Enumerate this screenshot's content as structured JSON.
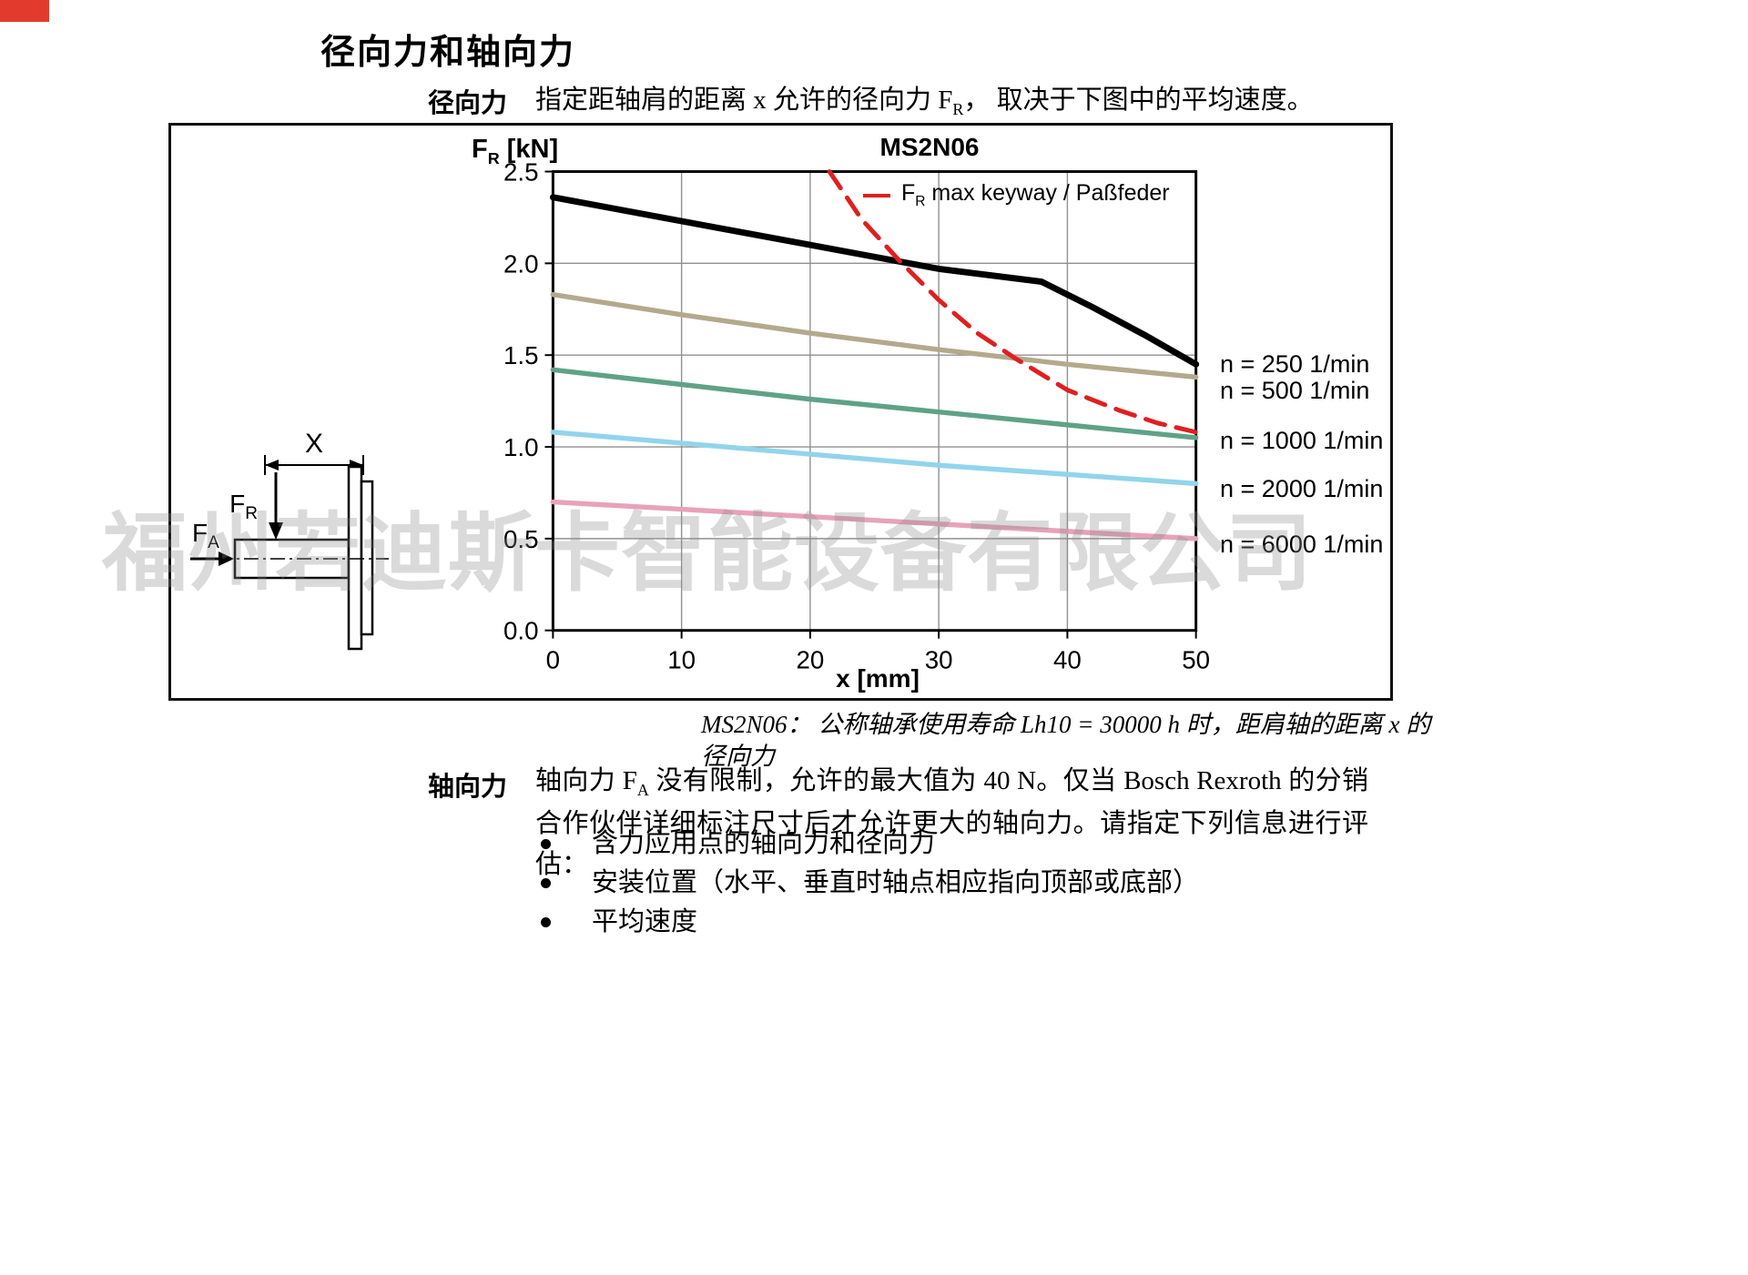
{
  "page": {
    "title": "径向力和轴向力",
    "watermark": "福州若迪斯卡智能设备有限公司"
  },
  "radial_section": {
    "label": "径向力",
    "text_before": "指定距轴肩的距离 x 允许的径向力 F",
    "text_sub": "R",
    "text_after": "， 取决于下图中的平均速度。"
  },
  "figure": {
    "y_axis": {
      "prefix": "F",
      "sub": "R",
      "suffix": " [kN]"
    },
    "legend": {
      "prefix": "F",
      "sub": "R",
      "suffix": " max keyway / Paßfeder"
    },
    "diagram": {
      "dim_label": "X",
      "fr_prefix": "F",
      "fr_sub": "R",
      "fa_prefix": "F",
      "fa_sub": "A"
    }
  },
  "chart_data": {
    "type": "line",
    "title": "MS2N06",
    "xlabel": "x [mm]",
    "ylabel": "FR [kN]",
    "xlim": [
      0,
      50
    ],
    "ylim": [
      0.0,
      2.5
    ],
    "x_ticks": [
      0,
      10,
      20,
      30,
      40,
      50
    ],
    "y_ticks": [
      0.0,
      0.5,
      1.0,
      1.5,
      2.0,
      2.5
    ],
    "grid": true,
    "legend_position": "inside-top",
    "series": [
      {
        "label": "n = 250 1/min",
        "color": "#000000",
        "style": "solid",
        "width": 7,
        "points": [
          [
            0,
            2.36
          ],
          [
            10,
            2.23
          ],
          [
            20,
            2.1
          ],
          [
            30,
            1.97
          ],
          [
            38,
            1.9
          ],
          [
            42,
            1.76
          ],
          [
            46,
            1.61
          ],
          [
            50,
            1.45
          ]
        ]
      },
      {
        "label": "n = 500 1/min",
        "color": "#b3a98c",
        "style": "solid",
        "width": 5.5,
        "points": [
          [
            0,
            1.83
          ],
          [
            10,
            1.72
          ],
          [
            20,
            1.62
          ],
          [
            30,
            1.53
          ],
          [
            40,
            1.45
          ],
          [
            50,
            1.38
          ]
        ]
      },
      {
        "label": "n = 1000 1/min",
        "color": "#5fa287",
        "style": "solid",
        "width": 5.5,
        "points": [
          [
            0,
            1.42
          ],
          [
            10,
            1.34
          ],
          [
            20,
            1.26
          ],
          [
            30,
            1.19
          ],
          [
            40,
            1.12
          ],
          [
            50,
            1.05
          ]
        ]
      },
      {
        "label": "n = 2000 1/min",
        "color": "#92d4ec",
        "style": "solid",
        "width": 5.5,
        "points": [
          [
            0,
            1.08
          ],
          [
            10,
            1.02
          ],
          [
            20,
            0.96
          ],
          [
            30,
            0.9
          ],
          [
            40,
            0.85
          ],
          [
            50,
            0.8
          ]
        ]
      },
      {
        "label": "n = 6000 1/min",
        "color": "#e8a2ba",
        "style": "solid",
        "width": 5.5,
        "points": [
          [
            0,
            0.7
          ],
          [
            10,
            0.66
          ],
          [
            20,
            0.62
          ],
          [
            30,
            0.58
          ],
          [
            40,
            0.54
          ],
          [
            50,
            0.5
          ]
        ]
      },
      {
        "label": "FR max keyway / Paßfeder",
        "color": "#e01f1f",
        "style": "dashed",
        "width": 5,
        "points": [
          [
            21.5,
            2.5
          ],
          [
            24,
            2.24
          ],
          [
            27,
            2.01
          ],
          [
            30,
            1.8
          ],
          [
            33,
            1.62
          ],
          [
            36,
            1.48
          ],
          [
            40,
            1.31
          ],
          [
            44,
            1.2
          ],
          [
            47,
            1.13
          ],
          [
            50,
            1.08
          ]
        ]
      }
    ]
  },
  "caption": {
    "line1": "MS2N06： 公称轴承使用寿命 Lh10 = 30000 h 时，距肩轴的距离 x 的",
    "line2": "径向力"
  },
  "axial_section": {
    "label": "轴向力",
    "text_before": "轴向力 F",
    "text_sub": "A",
    "text_after": " 没有限制，允许的最大值为 40 N。仅当 Bosch Rexroth 的分销合作伙伴详细标注尺寸后才允许更大的轴向力。请指定下列信息进行评估：",
    "bullets": [
      "含力应用点的轴向力和径向力",
      "安装位置（水平、垂直时轴点相应指向顶部或底部）",
      "平均速度"
    ]
  }
}
